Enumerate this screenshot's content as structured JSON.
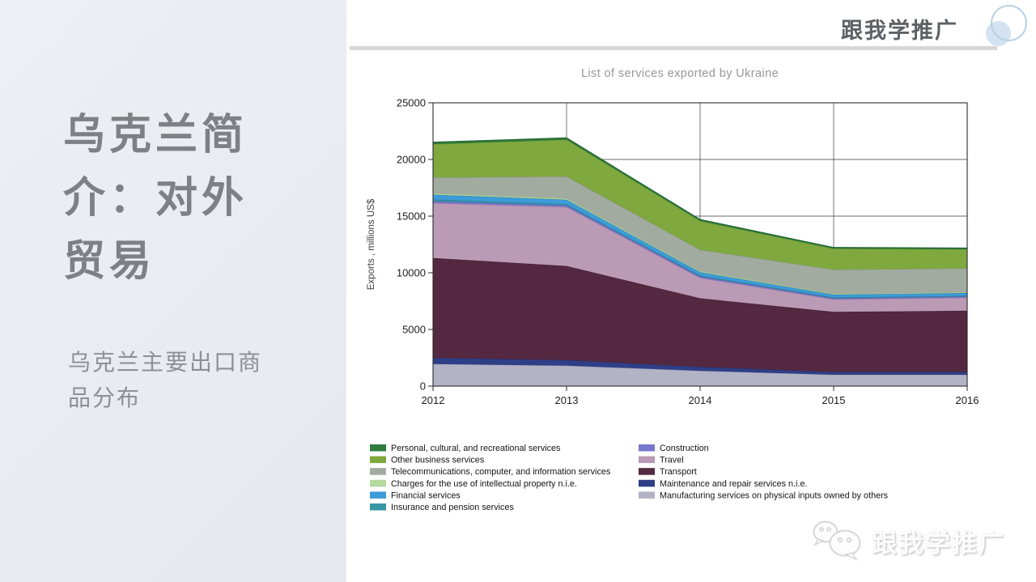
{
  "brand": {
    "name": "跟我学推广"
  },
  "sidebar": {
    "title": "乌克兰简介：对外贸易",
    "subtitle": "乌克兰主要出口商品分布"
  },
  "icons": {
    "logo": "overlapping-circles-icon",
    "watermark": "wechat-bubbles-icon"
  },
  "chart_data": {
    "type": "area",
    "stacked": true,
    "title": "List of services exported by Ukraine",
    "xlabel": "",
    "ylabel": "Exports , millions US$",
    "x": [
      2012,
      2013,
      2014,
      2015,
      2016
    ],
    "ylim": [
      0,
      25000
    ],
    "yticks": [
      0,
      5000,
      10000,
      15000,
      20000,
      25000
    ],
    "grid": true,
    "legend_position": "bottom, two columns",
    "series_note": "listed bottom-to-top of stack; legend shows reverse order",
    "series": [
      {
        "name": "Manufacturing services on physical inputs owned by others",
        "color": "#b2b3c5",
        "edge": "#9c9db4",
        "values": [
          1950,
          1800,
          1350,
          1000,
          1000
        ]
      },
      {
        "name": "Maintenance and repair services n.i.e.",
        "color": "#2f3f87",
        "edge": "#27346f",
        "values": [
          550,
          500,
          350,
          250,
          250
        ]
      },
      {
        "name": "Transport",
        "color": "#542840",
        "edge": "#431f33",
        "values": [
          8800,
          8300,
          6050,
          5300,
          5400
        ]
      },
      {
        "name": "Travel",
        "color": "#bb9ab5",
        "edge": "#a782a0",
        "values": [
          4850,
          5200,
          1800,
          1100,
          1150
        ]
      },
      {
        "name": "Construction",
        "color": "#7678cf",
        "edge": "#5f61b8",
        "values": [
          160,
          150,
          120,
          100,
          100
        ]
      },
      {
        "name": "Insurance and pension services",
        "color": "#3795a4",
        "edge": "#2c7c89",
        "values": [
          150,
          100,
          80,
          70,
          70
        ]
      },
      {
        "name": "Financial services",
        "color": "#3d9bd8",
        "edge": "#2f83b9",
        "values": [
          430,
          400,
          300,
          250,
          250
        ]
      },
      {
        "name": "Charges for the use of intellectual property n.i.e.",
        "color": "#b5d99f",
        "edge": "#9cc585",
        "values": [
          110,
          100,
          80,
          60,
          60
        ]
      },
      {
        "name": "Telecommunications, computer, and information services",
        "color": "#a2ab9f",
        "edge": "#8c968a",
        "values": [
          1400,
          1950,
          1900,
          2150,
          2100
        ]
      },
      {
        "name": "Other business services",
        "color": "#7fa83e",
        "edge": "#679030",
        "values": [
          2950,
          3250,
          2550,
          1850,
          1700
        ]
      },
      {
        "name": "Personal, cultural, and recreational services",
        "color": "#2e7d3c",
        "edge": "#1f6130",
        "values": [
          170,
          150,
          120,
          100,
          100
        ]
      }
    ]
  }
}
